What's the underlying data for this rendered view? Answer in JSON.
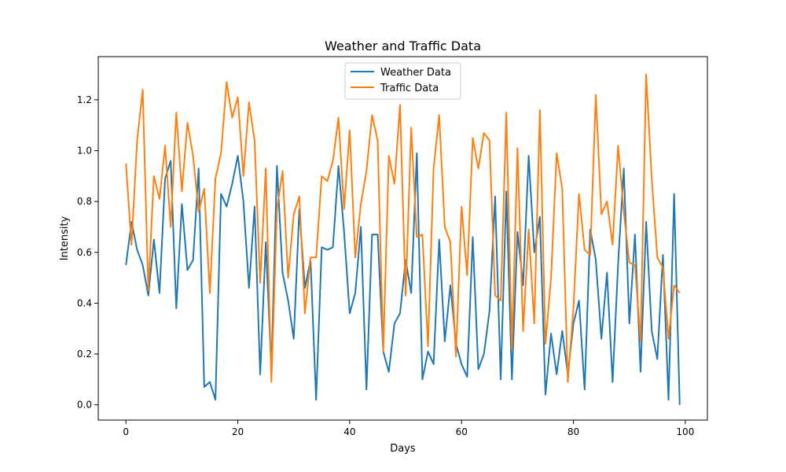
{
  "chart_data": {
    "type": "line",
    "title": "Weather and Traffic Data",
    "xlabel": "Days",
    "ylabel": "Intensity",
    "xlim": [
      -4.95,
      103.95
    ],
    "ylim": [
      -0.06,
      1.37
    ],
    "xticks": [
      0,
      20,
      40,
      60,
      80,
      100
    ],
    "xtick_labels": [
      "0",
      "20",
      "40",
      "60",
      "80",
      "100"
    ],
    "yticks": [
      0.0,
      0.2,
      0.4,
      0.6,
      0.8,
      1.0,
      1.2
    ],
    "ytick_labels": [
      "0.0",
      "0.2",
      "0.4",
      "0.6",
      "0.8",
      "1.0",
      "1.2"
    ],
    "grid": false,
    "legend_position": "upper center",
    "x": [
      0,
      1,
      2,
      3,
      4,
      5,
      6,
      7,
      8,
      9,
      10,
      11,
      12,
      13,
      14,
      15,
      16,
      17,
      18,
      19,
      20,
      21,
      22,
      23,
      24,
      25,
      26,
      27,
      28,
      29,
      30,
      31,
      32,
      33,
      34,
      35,
      36,
      37,
      38,
      39,
      40,
      41,
      42,
      43,
      44,
      45,
      46,
      47,
      48,
      49,
      50,
      51,
      52,
      53,
      54,
      55,
      56,
      57,
      58,
      59,
      60,
      61,
      62,
      63,
      64,
      65,
      66,
      67,
      68,
      69,
      70,
      71,
      72,
      73,
      74,
      75,
      76,
      77,
      78,
      79,
      80,
      81,
      82,
      83,
      84,
      85,
      86,
      87,
      88,
      89,
      90,
      91,
      92,
      93,
      94,
      95,
      96,
      97,
      98,
      99
    ],
    "series": [
      {
        "name": "Weather Data",
        "color": "#1f77b4",
        "values": [
          0.55,
          0.72,
          0.61,
          0.55,
          0.43,
          0.65,
          0.44,
          0.89,
          0.96,
          0.38,
          0.79,
          0.53,
          0.57,
          0.93,
          0.07,
          0.09,
          0.02,
          0.83,
          0.78,
          0.87,
          0.98,
          0.8,
          0.46,
          0.78,
          0.12,
          0.64,
          0.14,
          0.94,
          0.52,
          0.41,
          0.26,
          0.77,
          0.46,
          0.57,
          0.02,
          0.62,
          0.61,
          0.62,
          0.94,
          0.68,
          0.36,
          0.44,
          0.7,
          0.06,
          0.67,
          0.67,
          0.21,
          0.13,
          0.32,
          0.36,
          0.57,
          0.44,
          0.99,
          0.1,
          0.21,
          0.16,
          0.65,
          0.25,
          0.47,
          0.24,
          0.16,
          0.11,
          0.66,
          0.14,
          0.2,
          0.37,
          0.82,
          0.1,
          0.84,
          0.1,
          0.68,
          0.47,
          0.98,
          0.6,
          0.74,
          0.04,
          0.28,
          0.12,
          0.29,
          0.12,
          0.32,
          0.41,
          0.06,
          0.69,
          0.57,
          0.26,
          0.52,
          0.09,
          0.56,
          0.93,
          0.32,
          0.67,
          0.13,
          0.72,
          0.29,
          0.18,
          0.59,
          0.02,
          0.83,
          0.0
        ]
      },
      {
        "name": "Traffic Data",
        "color": "#ff7f0e",
        "values": [
          0.95,
          0.63,
          1.04,
          1.24,
          0.45,
          0.9,
          0.81,
          1.02,
          0.7,
          1.15,
          0.84,
          1.11,
          0.98,
          0.76,
          0.85,
          0.44,
          0.89,
          0.99,
          1.27,
          1.13,
          1.21,
          0.9,
          1.19,
          1.04,
          0.48,
          0.93,
          0.09,
          0.77,
          0.92,
          0.5,
          0.75,
          0.82,
          0.36,
          0.58,
          0.58,
          0.9,
          0.88,
          0.96,
          1.13,
          0.77,
          1.08,
          0.58,
          0.79,
          0.92,
          1.14,
          1.04,
          0.21,
          0.98,
          0.87,
          1.18,
          0.43,
          1.09,
          0.66,
          0.67,
          0.23,
          0.93,
          1.14,
          0.7,
          0.64,
          0.19,
          0.78,
          0.51,
          1.05,
          0.93,
          1.07,
          1.04,
          0.43,
          0.41,
          1.15,
          0.22,
          1.01,
          0.29,
          0.69,
          0.32,
          1.16,
          0.24,
          0.5,
          0.99,
          0.85,
          0.09,
          0.38,
          0.83,
          0.61,
          0.59,
          1.22,
          0.75,
          0.8,
          0.63,
          1.02,
          0.76,
          0.56,
          0.55,
          0.25,
          1.3,
          0.89,
          0.58,
          0.54,
          0.26,
          0.47,
          0.44
        ]
      }
    ]
  }
}
